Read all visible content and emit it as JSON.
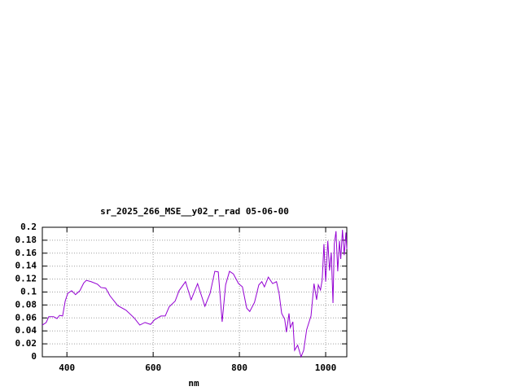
{
  "chart_data": {
    "type": "line",
    "title": "sr_2025_266_MSE__y02_r_rad 05-06-00",
    "x_label": "nm",
    "x": [
      343,
      352,
      358,
      369,
      377,
      383,
      390,
      396,
      402,
      411,
      420,
      430,
      439,
      445,
      456,
      471,
      479,
      490,
      500,
      518,
      537,
      556,
      569,
      581,
      594,
      603,
      618,
      628,
      637,
      651,
      660,
      675,
      688,
      703,
      720,
      732,
      743,
      751,
      760,
      768,
      777,
      786,
      798,
      807,
      817,
      824,
      835,
      845,
      852,
      858,
      867,
      877,
      886,
      892,
      898,
      905,
      909,
      915,
      918,
      924,
      928,
      935,
      943,
      949,
      956,
      966,
      973,
      979,
      983,
      988,
      992,
      996,
      1000,
      1005,
      1009,
      1013,
      1017,
      1020,
      1024,
      1028,
      1032,
      1035,
      1039,
      1043,
      1047,
      1049
    ],
    "series": [
      {
        "color": "#9400d3",
        "values": [
          0.049,
          0.053,
          0.062,
          0.062,
          0.059,
          0.064,
          0.063,
          0.086,
          0.098,
          0.102,
          0.096,
          0.102,
          0.114,
          0.118,
          0.116,
          0.112,
          0.107,
          0.106,
          0.094,
          0.079,
          0.072,
          0.06,
          0.049,
          0.053,
          0.05,
          0.057,
          0.063,
          0.063,
          0.077,
          0.086,
          0.102,
          0.116,
          0.088,
          0.113,
          0.078,
          0.098,
          0.132,
          0.131,
          0.054,
          0.111,
          0.132,
          0.128,
          0.113,
          0.108,
          0.075,
          0.07,
          0.084,
          0.111,
          0.116,
          0.108,
          0.123,
          0.113,
          0.116,
          0.098,
          0.067,
          0.058,
          0.038,
          0.067,
          0.045,
          0.054,
          0.01,
          0.018,
          0.0,
          0.01,
          0.042,
          0.063,
          0.113,
          0.088,
          0.111,
          0.103,
          0.119,
          0.174,
          0.116,
          0.179,
          0.133,
          0.161,
          0.083,
          0.174,
          0.194,
          0.132,
          0.179,
          0.151,
          0.196,
          0.157,
          0.192,
          0.166
        ]
      }
    ],
    "xlim": [
      343,
      1049
    ],
    "ylim": [
      0,
      0.2
    ],
    "xticks": [
      400,
      600,
      800,
      1000
    ],
    "yticks": [
      0,
      0.02,
      0.04,
      0.06,
      0.08,
      0.1,
      0.12,
      0.14,
      0.16,
      0.18,
      0.2
    ],
    "grid": true
  }
}
